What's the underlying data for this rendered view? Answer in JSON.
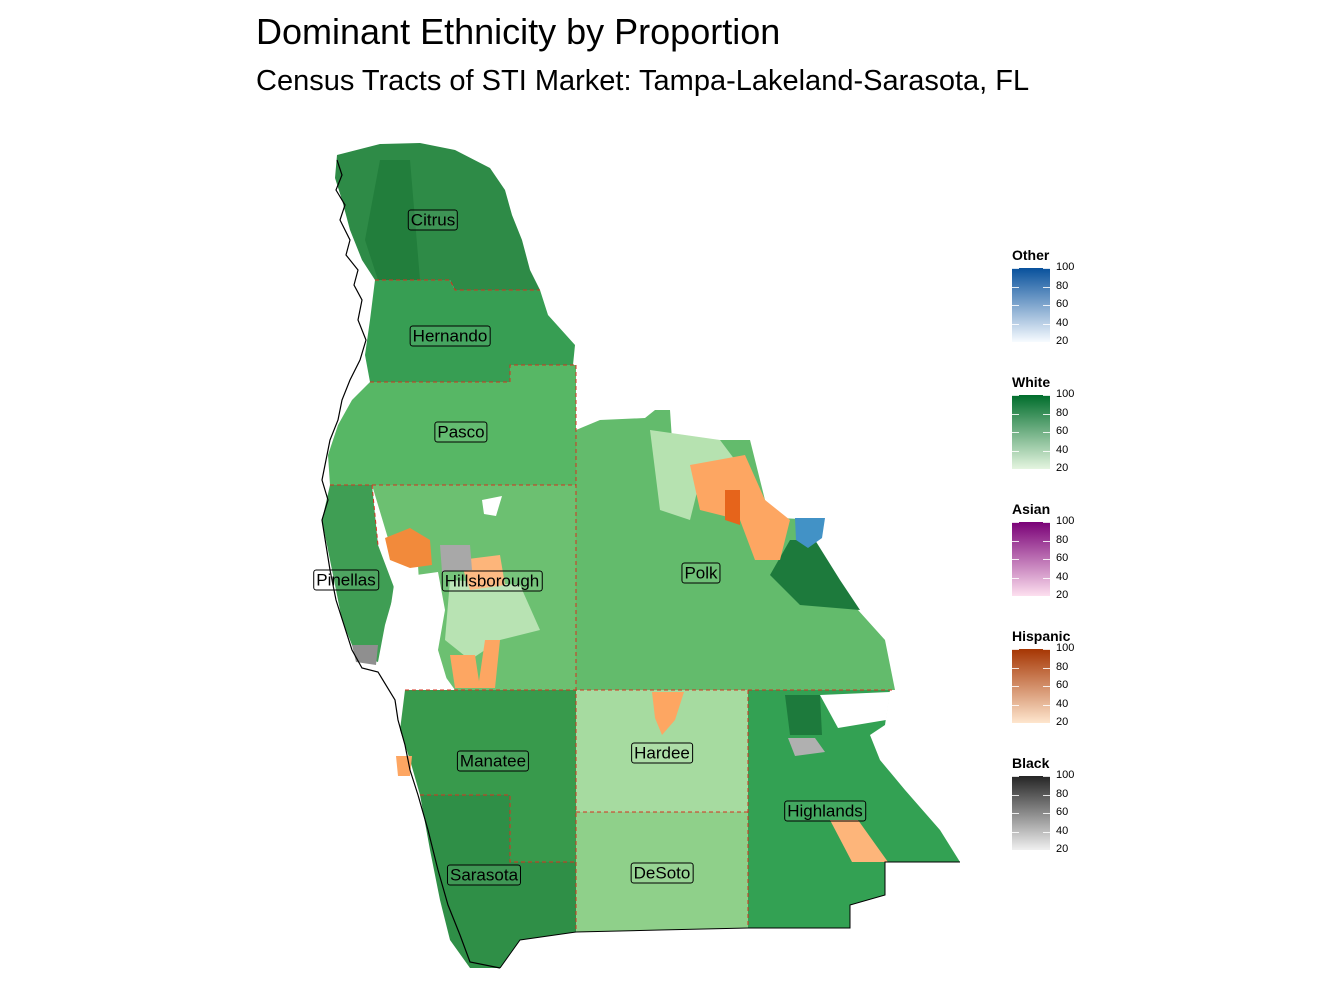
{
  "title": "Dominant Ethnicity by Proportion",
  "subtitle": "Census Tracts of STI Market: Tampa-Lakeland-Sarasota, FL",
  "counties": [
    "Citrus",
    "Hernando",
    "Pasco",
    "Pinellas",
    "Hillsborough",
    "Polk",
    "Manatee",
    "Hardee",
    "Highlands",
    "Sarasota",
    "DeSoto"
  ],
  "legend": [
    {
      "title": "Other",
      "ticks": [
        "100",
        "80",
        "60",
        "40",
        "20"
      ],
      "color_low": "#f7fbff",
      "color_high": "#08519c"
    },
    {
      "title": "White",
      "ticks": [
        "100",
        "80",
        "60",
        "40",
        "20"
      ],
      "color_low": "#e5f5e0",
      "color_high": "#006d2c"
    },
    {
      "title": "Asian",
      "ticks": [
        "100",
        "80",
        "60",
        "40",
        "20"
      ],
      "color_low": "#fde0ef",
      "color_high": "#7a0177"
    },
    {
      "title": "Hispanic",
      "ticks": [
        "100",
        "80",
        "60",
        "40",
        "20"
      ],
      "color_low": "#fee6ce",
      "color_high": "#a63603"
    },
    {
      "title": "Black",
      "ticks": [
        "100",
        "80",
        "60",
        "40",
        "20"
      ],
      "color_low": "#f0f0f0",
      "color_high": "#252525"
    }
  ]
}
